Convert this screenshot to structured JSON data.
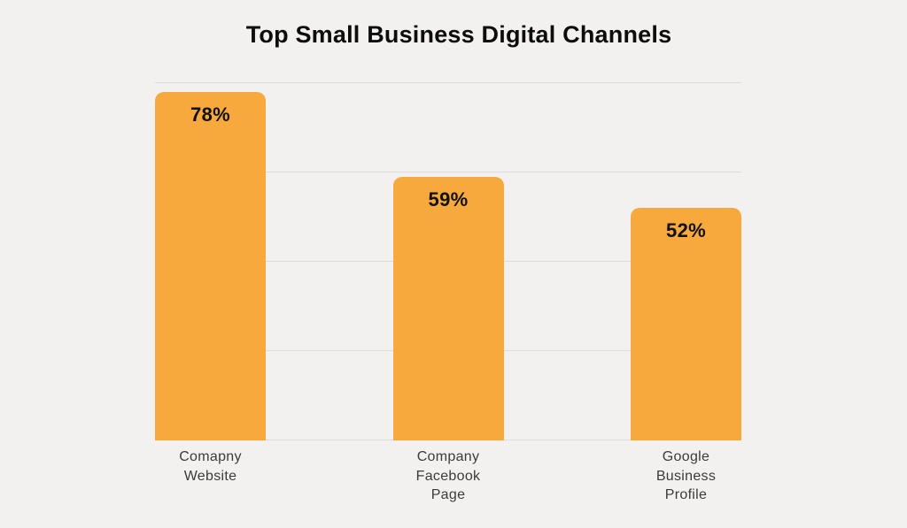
{
  "chart_data": {
    "type": "bar",
    "title": "Top Small Business Digital Channels",
    "categories": [
      "Comapny\nWebsite",
      "Company\nFacebook\nPage",
      "Google\nBusiness\nProfile"
    ],
    "values": [
      78,
      59,
      52
    ],
    "value_labels": [
      "78%",
      "59%",
      "52%"
    ],
    "xlabel": "",
    "ylabel": "",
    "ylim": [
      0,
      80
    ],
    "gridline_values": [
      0,
      20,
      40,
      60,
      80
    ],
    "grid": "horizontal",
    "legend": "none",
    "colors": {
      "bar": "#f8a93e",
      "background": "#f2f1ef",
      "gridline": "#dddcd9",
      "title_text": "#0d0d0d",
      "value_text": "#101010",
      "axis_label_text": "#3b3b3b"
    }
  }
}
